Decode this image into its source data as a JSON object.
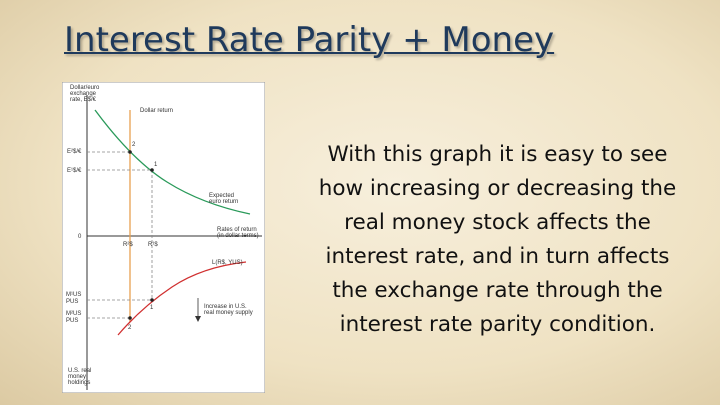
{
  "slide": {
    "title": "Interest Rate Parity + Money",
    "body_lines": [
      "With this graph it is easy to see",
      "how increasing or decreasing the",
      "real money stock affects the",
      "interest rate, and in turn affects",
      "the exchange rate through the",
      "interest rate parity condition."
    ],
    "figure": {
      "y_axis_label_lines": [
        "Dollar/euro",
        "exchange",
        "rate, E$/€"
      ],
      "dollar_return": "Dollar return",
      "e2": "E²$/€",
      "e1": "E¹$/€",
      "point_2_top": "2",
      "point_1_top": "1",
      "expected_euro_return_lines": [
        "Expected",
        "euro return"
      ],
      "origin": "0",
      "rates_of_return_lines": [
        "Rates of return",
        "(in dollar terms)"
      ],
      "r2": "R²$",
      "r1": "R¹$",
      "money_demand": "L(R$, YUS)",
      "m1_lines": [
        "M¹US",
        "PUS"
      ],
      "m2_lines": [
        "M²US",
        "PUS"
      ],
      "point_1_bottom": "1",
      "point_2_bottom": "2",
      "increase_lines": [
        "Increase in U.S.",
        "real money supply"
      ],
      "holdings_lines": [
        "U.S. real",
        "money",
        "holdings"
      ]
    }
  }
}
